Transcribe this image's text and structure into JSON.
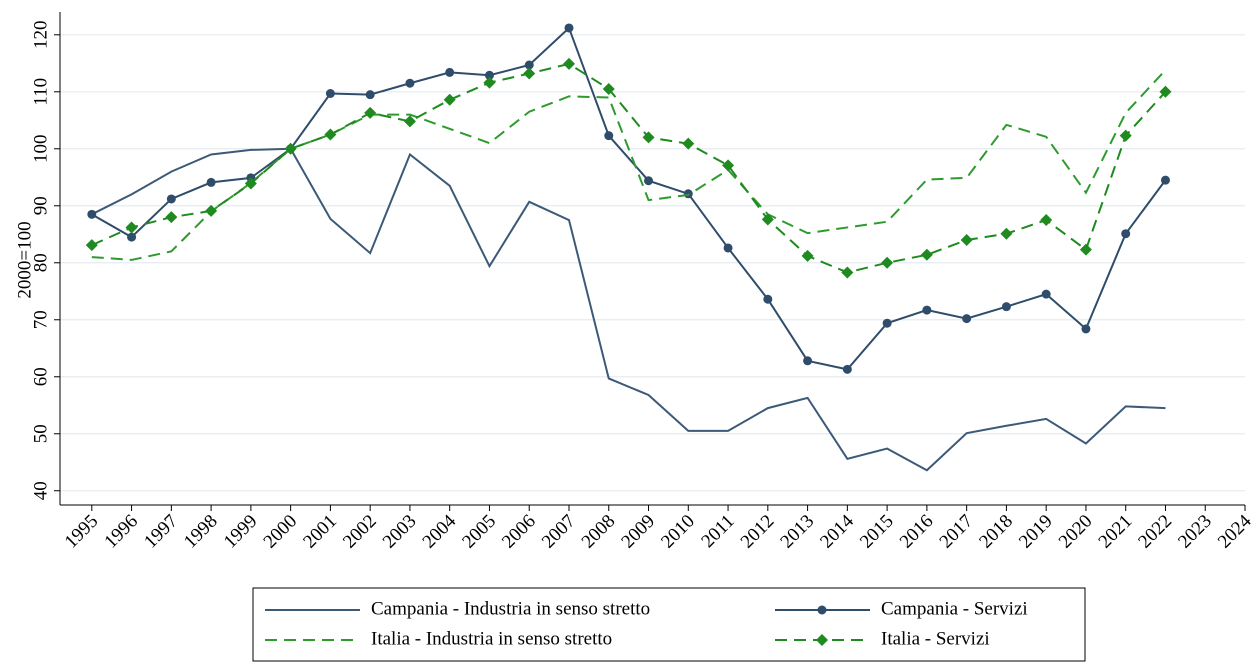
{
  "chart_data": {
    "type": "line",
    "y_label": "2000=100",
    "x": [
      1995,
      1996,
      1997,
      1998,
      1999,
      2000,
      2001,
      2002,
      2003,
      2004,
      2005,
      2006,
      2007,
      2008,
      2009,
      2010,
      2011,
      2012,
      2013,
      2014,
      2015,
      2016,
      2017,
      2018,
      2019,
      2020,
      2021,
      2022,
      2023,
      2024
    ],
    "xlim": [
      1994.2,
      2024
    ],
    "xticks": [
      1995,
      1996,
      1997,
      1998,
      1999,
      2000,
      2001,
      2002,
      2003,
      2004,
      2005,
      2006,
      2007,
      2008,
      2009,
      2010,
      2011,
      2012,
      2013,
      2014,
      2015,
      2016,
      2017,
      2018,
      2019,
      2020,
      2021,
      2022,
      2023,
      2024
    ],
    "ylim": [
      37.5,
      124
    ],
    "yticks": [
      40,
      50,
      60,
      70,
      80,
      90,
      100,
      110,
      120
    ],
    "grid": true,
    "legend": "bottom",
    "series": [
      {
        "name": "Campania - Industria in senso stretto",
        "color": "#3c5a78",
        "dash": false,
        "marker": "none",
        "values": [
          88.5,
          92,
          96,
          99,
          99.8,
          100,
          87.7,
          81.7,
          99,
          93.5,
          79.4,
          90.7,
          87.5,
          59.7,
          56.8,
          50.5,
          50.5,
          54.5,
          56.3,
          45.6,
          47.4,
          43.6,
          50.1,
          51.4,
          52.6,
          48.3,
          54.8,
          54.5,
          null,
          null
        ]
      },
      {
        "name": "Campania - Servizi",
        "color": "#2f4d6b",
        "dash": false,
        "marker": "circle",
        "values": [
          88.5,
          84.5,
          91.2,
          94.1,
          94.9,
          100,
          109.7,
          109.5,
          111.5,
          113.4,
          112.9,
          114.7,
          121.2,
          102.3,
          94.4,
          92.1,
          82.6,
          73.6,
          62.8,
          61.3,
          69.4,
          71.7,
          70.2,
          72.3,
          74.5,
          68.4,
          85.1,
          94.5,
          null,
          null
        ]
      },
      {
        "name": "Italia - Industria in senso stretto",
        "color": "#2e9a2e",
        "dash": true,
        "marker": "none",
        "values": [
          81,
          80.5,
          82,
          89,
          94,
          100,
          102.5,
          106,
          106,
          103.5,
          101,
          106.5,
          109.2,
          109,
          91,
          91.9,
          96.3,
          88.5,
          85.2,
          86.2,
          87.2,
          94.6,
          94.9,
          104.2,
          102.1,
          92.3,
          106.3,
          113.8,
          null,
          null
        ]
      },
      {
        "name": "Italia - Servizi",
        "color": "#1f8a1f",
        "dash": true,
        "marker": "diamond",
        "values": [
          83.1,
          86.2,
          88,
          89.1,
          93.9,
          100,
          102.5,
          106.3,
          104.8,
          108.6,
          111.6,
          113.2,
          114.9,
          110.5,
          102,
          100.9,
          97.1,
          87.6,
          81.2,
          78.3,
          80,
          81.4,
          84,
          85.1,
          87.5,
          82.3,
          102.3,
          110,
          null,
          null
        ]
      }
    ]
  }
}
